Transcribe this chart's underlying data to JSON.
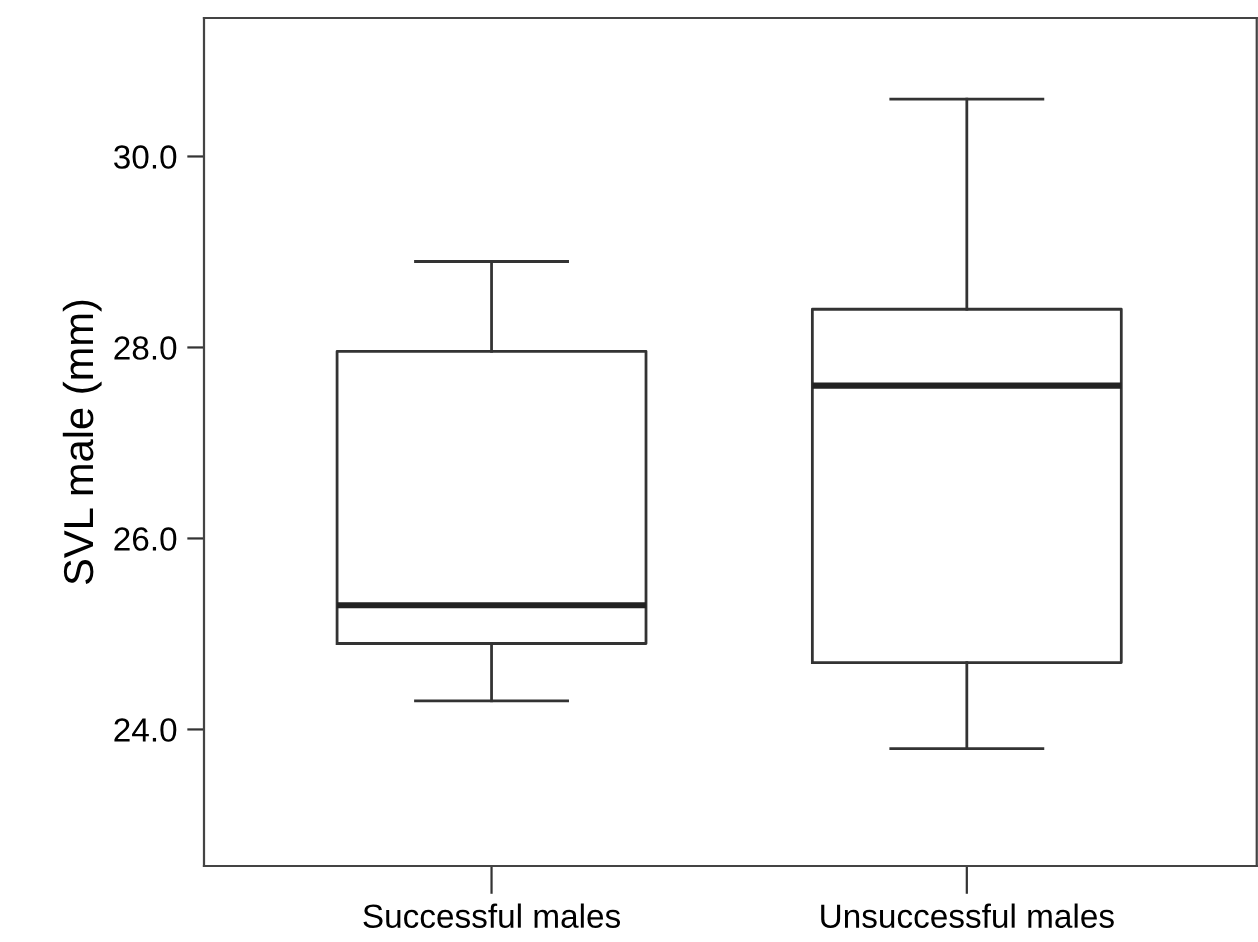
{
  "chart_data": {
    "type": "box",
    "ylabel": "SVL male (mm)",
    "categories": [
      "Successful males",
      "Unsuccessful males"
    ],
    "boxes": [
      {
        "low": 24.3,
        "q1": 24.9,
        "median": 25.3,
        "q3": 27.96,
        "high": 28.9
      },
      {
        "low": 23.8,
        "q1": 24.7,
        "median": 27.6,
        "q3": 28.4,
        "high": 30.6
      }
    ],
    "ylim": [
      22.57,
      31.45
    ],
    "yticks": [
      {
        "value": 24,
        "label": "24.0"
      },
      {
        "value": 26,
        "label": "26.0"
      },
      {
        "value": 28,
        "label": "28.0"
      },
      {
        "value": 30,
        "label": "30.0"
      }
    ],
    "grid": false,
    "legend": false
  }
}
